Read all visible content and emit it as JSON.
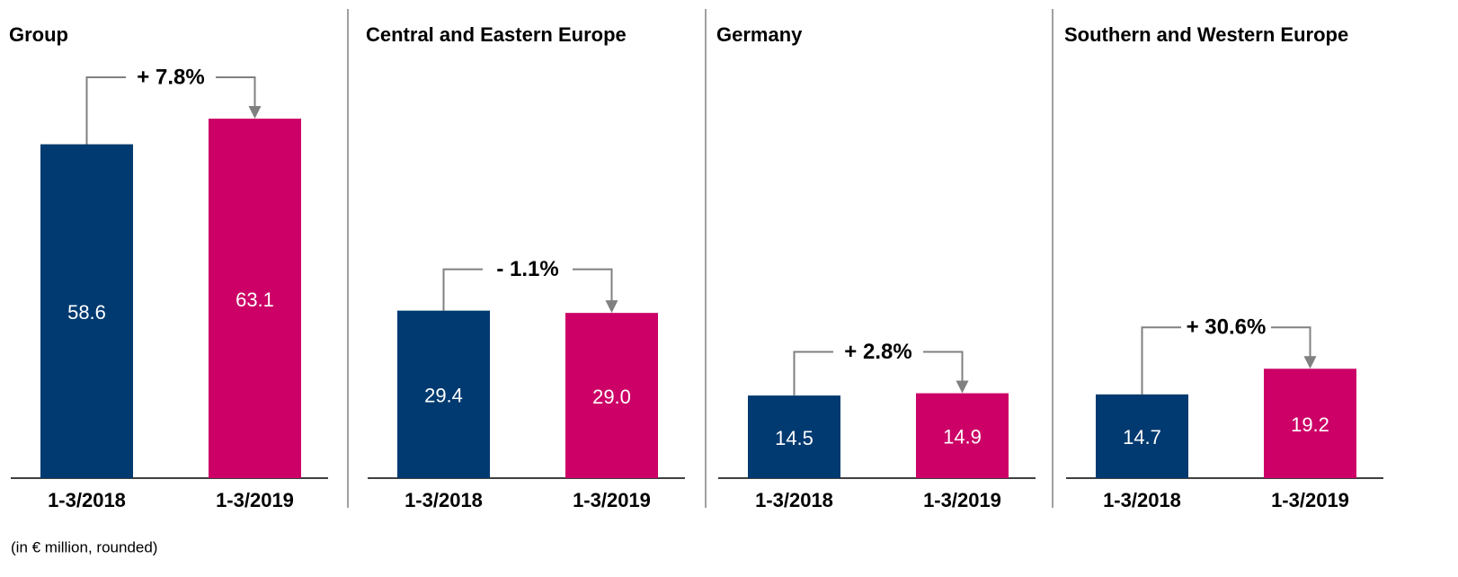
{
  "chart_data": [
    {
      "type": "bar",
      "title": "Group",
      "categories": [
        "1-3/2018",
        "1-3/2019"
      ],
      "values": [
        58.6,
        63.1
      ],
      "colors": [
        "#003a70",
        "#cc0066"
      ],
      "annotation": "+ 7.8%"
    },
    {
      "type": "bar",
      "title": "Central and Eastern Europe",
      "categories": [
        "1-3/2018",
        "1-3/2019"
      ],
      "values": [
        29.4,
        29.0
      ],
      "value_labels": [
        "29.4",
        "29.0"
      ],
      "colors": [
        "#003a70",
        "#cc0066"
      ],
      "annotation": "- 1.1%"
    },
    {
      "type": "bar",
      "title": "Germany",
      "categories": [
        "1-3/2018",
        "1-3/2019"
      ],
      "values": [
        14.5,
        14.9
      ],
      "colors": [
        "#003a70",
        "#cc0066"
      ],
      "annotation": "+ 2.8%"
    },
    {
      "type": "bar",
      "title": "Southern and Western Europe",
      "categories": [
        "1-3/2018",
        "1-3/2019"
      ],
      "values": [
        14.7,
        19.2
      ],
      "colors": [
        "#003a70",
        "#cc0066"
      ],
      "annotation": "+ 30.6%"
    }
  ],
  "footnote": "(in € million, rounded)"
}
